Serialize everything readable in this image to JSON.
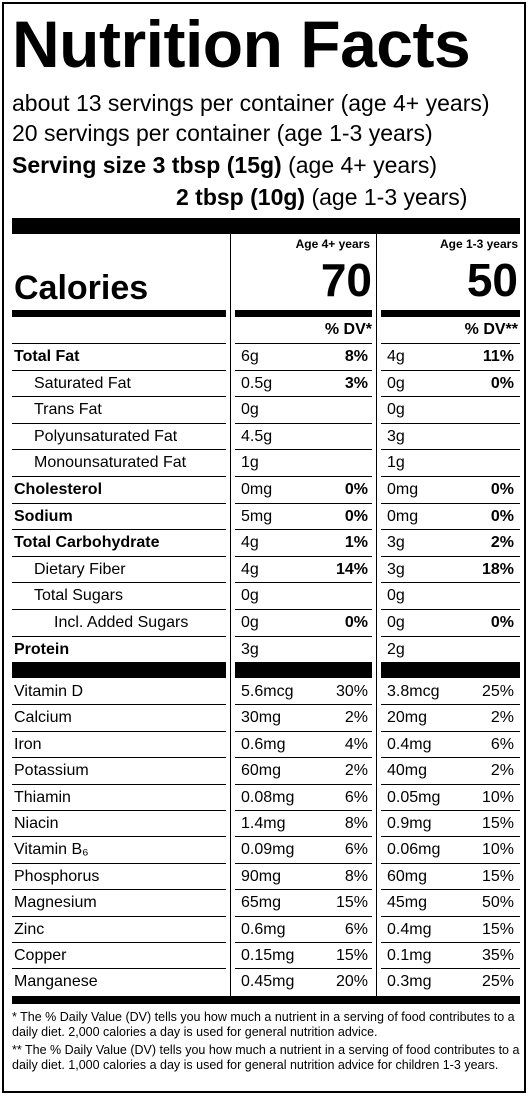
{
  "title": "Nutrition Facts",
  "servings": {
    "line1": "about 13 servings per container (age 4+ years)",
    "line2": "20 servings per container (age 1-3 years)",
    "size_label": "Serving size 3 tbsp (15g)",
    "size_age": " (age 4+ years)",
    "size2_label": "2 tbsp (10g)",
    "size2_age": " (age 1-3 years)"
  },
  "columns": {
    "adult_header": "Age 4+ years",
    "child_header": "Age 1-3 years",
    "adult_dv": "% DV*",
    "child_dv": "% DV**"
  },
  "calories": {
    "label": "Calories",
    "adult": "70",
    "child": "50"
  },
  "nutrients": [
    {
      "name": "Total Fat",
      "bold": true,
      "indent": 0,
      "a_amt": "6g",
      "a_dv": "8%",
      "c_amt": "4g",
      "c_dv": "11%"
    },
    {
      "name": "Saturated Fat",
      "bold": false,
      "indent": 1,
      "a_amt": "0.5g",
      "a_dv": "3%",
      "c_amt": "0g",
      "c_dv": "0%"
    },
    {
      "name": "Trans Fat",
      "bold": false,
      "indent": 1,
      "a_amt": "0g",
      "a_dv": "",
      "c_amt": "0g",
      "c_dv": ""
    },
    {
      "name": "Polyunsaturated Fat",
      "bold": false,
      "indent": 1,
      "a_amt": "4.5g",
      "a_dv": "",
      "c_amt": "3g",
      "c_dv": ""
    },
    {
      "name": "Monounsaturated Fat",
      "bold": false,
      "indent": 1,
      "a_amt": "1g",
      "a_dv": "",
      "c_amt": "1g",
      "c_dv": ""
    },
    {
      "name": "Cholesterol",
      "bold": true,
      "indent": 0,
      "a_amt": "0mg",
      "a_dv": "0%",
      "c_amt": "0mg",
      "c_dv": "0%"
    },
    {
      "name": "Sodium",
      "bold": true,
      "indent": 0,
      "a_amt": "5mg",
      "a_dv": "0%",
      "c_amt": "0mg",
      "c_dv": "0%"
    },
    {
      "name": "Total Carbohydrate",
      "bold": true,
      "indent": 0,
      "a_amt": "4g",
      "a_dv": "1%",
      "c_amt": "3g",
      "c_dv": "2%"
    },
    {
      "name": "Dietary Fiber",
      "bold": false,
      "indent": 1,
      "a_amt": "4g",
      "a_dv": "14%",
      "c_amt": "3g",
      "c_dv": "18%"
    },
    {
      "name": "Total Sugars",
      "bold": false,
      "indent": 1,
      "a_amt": "0g",
      "a_dv": "",
      "c_amt": "0g",
      "c_dv": ""
    },
    {
      "name": "Incl. Added Sugars",
      "bold": false,
      "indent": 2,
      "a_amt": "0g",
      "a_dv": "0%",
      "c_amt": "0g",
      "c_dv": "0%"
    },
    {
      "name": "Protein",
      "bold": true,
      "indent": 0,
      "a_amt": "3g",
      "a_dv": "",
      "c_amt": "2g",
      "c_dv": ""
    }
  ],
  "vitamins": [
    {
      "name": "Vitamin D",
      "a_amt": "5.6mcg",
      "a_dv": "30%",
      "c_amt": "3.8mcg",
      "c_dv": "25%"
    },
    {
      "name": "Calcium",
      "a_amt": "30mg",
      "a_dv": "2%",
      "c_amt": "20mg",
      "c_dv": "2%"
    },
    {
      "name": "Iron",
      "a_amt": "0.6mg",
      "a_dv": "4%",
      "c_amt": "0.4mg",
      "c_dv": "6%"
    },
    {
      "name": "Potassium",
      "a_amt": "60mg",
      "a_dv": "2%",
      "c_amt": "40mg",
      "c_dv": "2%"
    },
    {
      "name": "Thiamin",
      "a_amt": "0.08mg",
      "a_dv": "6%",
      "c_amt": "0.05mg",
      "c_dv": "10%"
    },
    {
      "name": "Niacin",
      "a_amt": "1.4mg",
      "a_dv": "8%",
      "c_amt": "0.9mg",
      "c_dv": "15%"
    },
    {
      "name": "Vitamin B₆",
      "a_amt": "0.09mg",
      "a_dv": "6%",
      "c_amt": "0.06mg",
      "c_dv": "10%"
    },
    {
      "name": "Phosphorus",
      "a_amt": "90mg",
      "a_dv": "8%",
      "c_amt": "60mg",
      "c_dv": "15%"
    },
    {
      "name": "Magnesium",
      "a_amt": "65mg",
      "a_dv": "15%",
      "c_amt": "45mg",
      "c_dv": "50%"
    },
    {
      "name": "Zinc",
      "a_amt": "0.6mg",
      "a_dv": "6%",
      "c_amt": "0.4mg",
      "c_dv": "15%"
    },
    {
      "name": "Copper",
      "a_amt": "0.15mg",
      "a_dv": "15%",
      "c_amt": "0.1mg",
      "c_dv": "35%"
    },
    {
      "name": "Manganese",
      "a_amt": "0.45mg",
      "a_dv": "20%",
      "c_amt": "0.3mg",
      "c_dv": "25%"
    }
  ],
  "footnotes": {
    "adult": "* The % Daily Value (DV) tells you how much a nutrient in a serving of food contributes to a daily diet. 2,000 calories a day is used for general nutrition advice.",
    "child": "** The % Daily Value (DV) tells you how much a nutrient in a serving of food contributes to a daily diet. 1,000 calories a day is used for general nutrition advice for children 1-3 years."
  }
}
